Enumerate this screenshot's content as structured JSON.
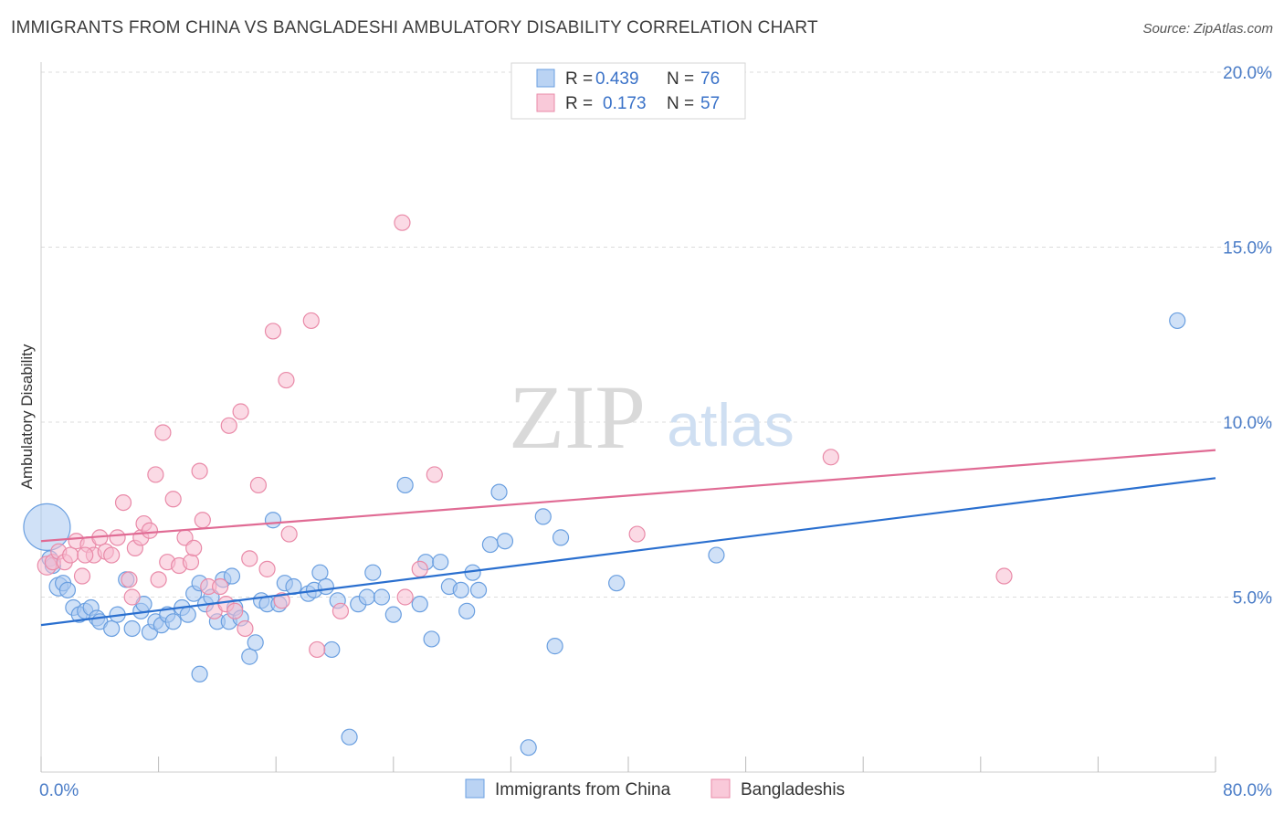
{
  "header": {
    "title": "IMMIGRANTS FROM CHINA VS BANGLADESHI AMBULATORY DISABILITY CORRELATION CHART",
    "source": "Source: ZipAtlas.com"
  },
  "watermark": {
    "zip": "ZIP",
    "atlas": "atlas"
  },
  "legend_top": {
    "rows": [
      {
        "r_label": "R =",
        "r_value": "0.439",
        "n_label": "N =",
        "n_value": "76"
      },
      {
        "r_label": "R =",
        "r_value": "0.173",
        "n_label": "N =",
        "n_value": "57"
      }
    ]
  },
  "legend_bottom": {
    "items": [
      "Immigrants from China",
      "Bangladeshis"
    ]
  },
  "colors": {
    "blue_fill": "#a9c8f0",
    "blue_stroke": "#6a9fe0",
    "blue_line": "#2a6fcf",
    "pink_fill": "#f7bcd0",
    "pink_stroke": "#e98aa8",
    "pink_line": "#e06b94",
    "tick_label": "#4a7cc7",
    "grid": "#dcdcdc"
  },
  "chart_data": {
    "type": "scatter",
    "title": "IMMIGRANTS FROM CHINA VS BANGLADESHI AMBULATORY DISABILITY CORRELATION CHART",
    "xlabel": "",
    "ylabel": "Ambulatory Disability",
    "xlim": [
      0,
      80
    ],
    "ylim": [
      0,
      20
    ],
    "x_tick_labels": [
      "0.0%",
      "80.0%"
    ],
    "y_ticks": [
      5,
      10,
      15,
      20
    ],
    "y_tick_labels": [
      "5.0%",
      "10.0%",
      "15.0%",
      "20.0%"
    ],
    "grid": true,
    "series": [
      {
        "name": "Immigrants from China",
        "color": "#a9c8f0",
        "trend": {
          "x": [
            0,
            80
          ],
          "y": [
            4.2,
            8.4
          ]
        },
        "points": [
          [
            0.4,
            7.0,
            3.0
          ],
          [
            0.6,
            6.1,
            1
          ],
          [
            0.8,
            5.9,
            1
          ],
          [
            1.2,
            5.3,
            1.2
          ],
          [
            1.5,
            5.4,
            1
          ],
          [
            1.8,
            5.2,
            1
          ],
          [
            2.2,
            4.7,
            1
          ],
          [
            2.6,
            4.5,
            1
          ],
          [
            3.0,
            4.6,
            1
          ],
          [
            3.4,
            4.7,
            1
          ],
          [
            3.8,
            4.4,
            1
          ],
          [
            4.0,
            4.3,
            1
          ],
          [
            4.8,
            4.1,
            1
          ],
          [
            5.2,
            4.5,
            1
          ],
          [
            5.8,
            5.5,
            1
          ],
          [
            6.2,
            4.1,
            1
          ],
          [
            6.8,
            4.6,
            1
          ],
          [
            7.0,
            4.8,
            1
          ],
          [
            7.4,
            4.0,
            1
          ],
          [
            7.8,
            4.3,
            1
          ],
          [
            8.2,
            4.2,
            1
          ],
          [
            8.6,
            4.5,
            1
          ],
          [
            9.0,
            4.3,
            1
          ],
          [
            9.6,
            4.7,
            1
          ],
          [
            10.0,
            4.5,
            1
          ],
          [
            10.4,
            5.1,
            1
          ],
          [
            10.8,
            5.4,
            1
          ],
          [
            11.2,
            4.8,
            1
          ],
          [
            11.6,
            5.0,
            1
          ],
          [
            12.0,
            4.3,
            1
          ],
          [
            12.4,
            5.5,
            1
          ],
          [
            12.8,
            4.3,
            1
          ],
          [
            13.2,
            4.7,
            1
          ],
          [
            13.6,
            4.4,
            1
          ],
          [
            14.2,
            3.3,
            1
          ],
          [
            14.6,
            3.7,
            1
          ],
          [
            15.0,
            4.9,
            1
          ],
          [
            15.4,
            4.8,
            1
          ],
          [
            15.8,
            7.2,
            1
          ],
          [
            16.2,
            4.8,
            1
          ],
          [
            16.6,
            5.4,
            1
          ],
          [
            17.2,
            5.3,
            1
          ],
          [
            18.2,
            5.1,
            1
          ],
          [
            18.6,
            5.2,
            1
          ],
          [
            19.0,
            5.7,
            1
          ],
          [
            19.4,
            5.3,
            1
          ],
          [
            19.8,
            3.5,
            1
          ],
          [
            21.0,
            1.0,
            1
          ],
          [
            21.6,
            4.8,
            1
          ],
          [
            22.2,
            5.0,
            1
          ],
          [
            22.6,
            5.7,
            1
          ],
          [
            23.2,
            5.0,
            1
          ],
          [
            24.0,
            4.5,
            1
          ],
          [
            24.8,
            8.2,
            1
          ],
          [
            25.8,
            4.8,
            1
          ],
          [
            26.2,
            6.0,
            1
          ],
          [
            26.6,
            3.8,
            1
          ],
          [
            27.2,
            6.0,
            1
          ],
          [
            27.8,
            5.3,
            1
          ],
          [
            28.6,
            5.2,
            1
          ],
          [
            29.0,
            4.6,
            1
          ],
          [
            29.4,
            5.7,
            1
          ],
          [
            29.8,
            5.2,
            1
          ],
          [
            30.6,
            6.5,
            1
          ],
          [
            31.2,
            8.0,
            1
          ],
          [
            31.6,
            6.6,
            1
          ],
          [
            33.2,
            0.7,
            1
          ],
          [
            34.2,
            7.3,
            1
          ],
          [
            35.0,
            3.6,
            1
          ],
          [
            35.4,
            6.7,
            1
          ],
          [
            39.2,
            5.4,
            1
          ],
          [
            46.0,
            6.2,
            1
          ],
          [
            77.4,
            12.9,
            1
          ],
          [
            10.8,
            2.8,
            1
          ],
          [
            13.0,
            5.6,
            1
          ],
          [
            20.2,
            4.9,
            1
          ]
        ]
      },
      {
        "name": "Bangladeshis",
        "color": "#f7bcd0",
        "trend": {
          "x": [
            0,
            80
          ],
          "y": [
            6.6,
            9.2
          ]
        },
        "points": [
          [
            0.4,
            5.9,
            1.2
          ],
          [
            0.8,
            6.0,
            1
          ],
          [
            1.2,
            6.3,
            1
          ],
          [
            1.6,
            6.0,
            1
          ],
          [
            2.0,
            6.2,
            1
          ],
          [
            2.4,
            6.6,
            1
          ],
          [
            2.8,
            5.6,
            1
          ],
          [
            3.2,
            6.5,
            1
          ],
          [
            3.6,
            6.2,
            1
          ],
          [
            4.0,
            6.7,
            1
          ],
          [
            4.4,
            6.3,
            1
          ],
          [
            4.8,
            6.2,
            1
          ],
          [
            5.2,
            6.7,
            1
          ],
          [
            5.6,
            7.7,
            1
          ],
          [
            6.0,
            5.5,
            1
          ],
          [
            6.4,
            6.4,
            1
          ],
          [
            6.8,
            6.7,
            1
          ],
          [
            7.0,
            7.1,
            1
          ],
          [
            7.4,
            6.9,
            1
          ],
          [
            7.8,
            8.5,
            1
          ],
          [
            8.0,
            5.5,
            1
          ],
          [
            8.3,
            9.7,
            1
          ],
          [
            8.6,
            6.0,
            1
          ],
          [
            9.0,
            7.8,
            1
          ],
          [
            9.4,
            5.9,
            1
          ],
          [
            9.8,
            6.7,
            1
          ],
          [
            10.2,
            6.0,
            1
          ],
          [
            10.4,
            6.4,
            1
          ],
          [
            10.8,
            8.6,
            1
          ],
          [
            11.0,
            7.2,
            1
          ],
          [
            11.4,
            5.3,
            1
          ],
          [
            11.8,
            4.6,
            1
          ],
          [
            12.2,
            5.3,
            1
          ],
          [
            12.6,
            4.8,
            1
          ],
          [
            12.8,
            9.9,
            1
          ],
          [
            13.2,
            4.6,
            1
          ],
          [
            13.6,
            10.3,
            1
          ],
          [
            13.9,
            4.1,
            1
          ],
          [
            14.2,
            6.1,
            1
          ],
          [
            14.8,
            8.2,
            1
          ],
          [
            15.4,
            5.8,
            1
          ],
          [
            15.8,
            12.6,
            1
          ],
          [
            16.4,
            4.9,
            1
          ],
          [
            16.7,
            11.2,
            1
          ],
          [
            16.9,
            6.8,
            1
          ],
          [
            18.4,
            12.9,
            1
          ],
          [
            18.8,
            3.5,
            1
          ],
          [
            20.4,
            4.6,
            1
          ],
          [
            24.6,
            15.7,
            1
          ],
          [
            24.8,
            5.0,
            1
          ],
          [
            25.8,
            5.8,
            1
          ],
          [
            26.8,
            8.5,
            1
          ],
          [
            40.6,
            6.8,
            1
          ],
          [
            53.8,
            9.0,
            1
          ],
          [
            65.6,
            5.6,
            1
          ],
          [
            3.0,
            6.2,
            1
          ],
          [
            6.2,
            5.0,
            1
          ]
        ]
      }
    ]
  }
}
